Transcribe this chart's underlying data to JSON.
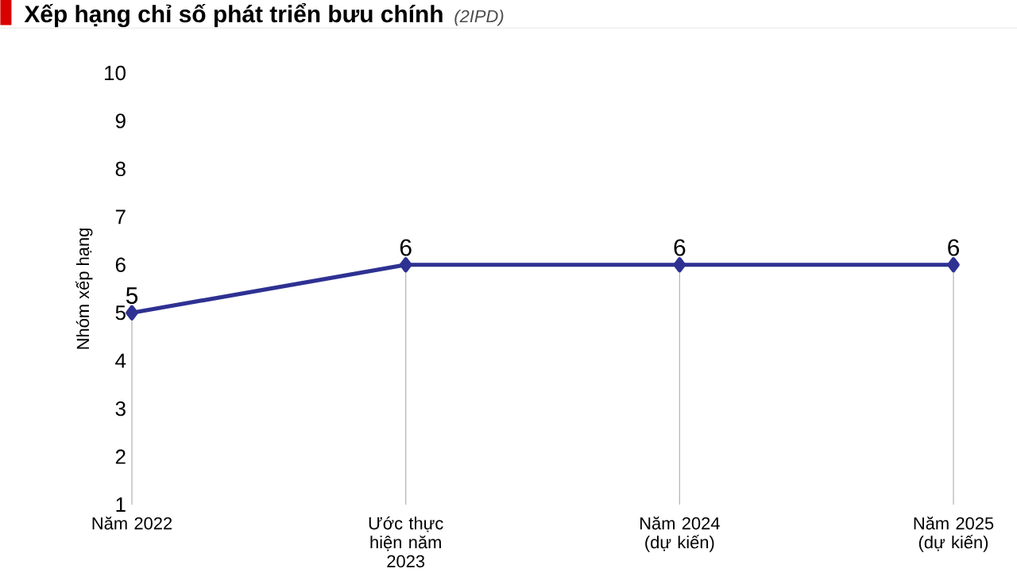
{
  "chart_data": {
    "type": "line",
    "title": "Xếp hạng chỉ số phát triển bưu chính",
    "subtitle": "(2IPD)",
    "ylabel": "Nhóm xếp hạng",
    "categories": [
      "Năm 2022",
      "Ước thực hiện năm 2023",
      "Năm 2024 (dự kiến)",
      "Năm 2025 (dự kiến)"
    ],
    "series": [
      {
        "color": "#2e3192",
        "values": [
          5,
          6,
          6,
          6
        ]
      }
    ],
    "ylim": [
      1,
      10
    ],
    "yticks": [
      1,
      2,
      3,
      4,
      5,
      6,
      7,
      8,
      9,
      10
    ],
    "data_labels": true,
    "marker": "diamond",
    "line_style": "solid",
    "grid": false
  }
}
